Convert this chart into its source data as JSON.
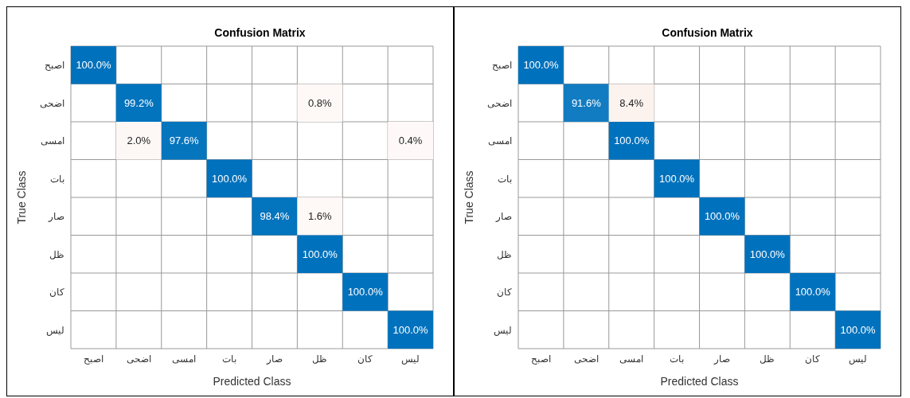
{
  "chart_data": [
    {
      "type": "heatmap",
      "title": "Confusion Matrix",
      "xlabel": "Predicted Class",
      "ylabel": "True Class",
      "categories": [
        "اصبح",
        "اضحى",
        "امسى",
        "بات",
        "صار",
        "ظل",
        "كان",
        "ليس"
      ],
      "y_categories": [
        "اصبح",
        "اضحى",
        "امسى",
        "بات",
        "صار",
        "ظل",
        "كان",
        "ليس"
      ],
      "cells": [
        [
          100.0,
          null,
          null,
          null,
          null,
          null,
          null,
          null
        ],
        [
          null,
          99.2,
          null,
          null,
          null,
          0.8,
          null,
          null
        ],
        [
          null,
          2.0,
          97.6,
          null,
          null,
          null,
          null,
          0.4
        ],
        [
          null,
          null,
          null,
          100.0,
          null,
          null,
          null,
          null
        ],
        [
          null,
          null,
          null,
          null,
          98.4,
          1.6,
          null,
          null
        ],
        [
          null,
          null,
          null,
          null,
          null,
          100.0,
          null,
          null
        ],
        [
          null,
          null,
          null,
          null,
          null,
          null,
          100.0,
          null
        ],
        [
          null,
          null,
          null,
          null,
          null,
          null,
          null,
          100.0
        ]
      ],
      "cell_labels": [
        [
          "100.0%",
          null,
          null,
          null,
          null,
          null,
          null,
          null
        ],
        [
          null,
          "99.2%",
          null,
          null,
          null,
          "0.8%",
          null,
          null
        ],
        [
          null,
          "2.0%",
          "97.6%",
          null,
          null,
          null,
          null,
          "0.4%"
        ],
        [
          null,
          null,
          null,
          "100.0%",
          null,
          null,
          null,
          null
        ],
        [
          null,
          null,
          null,
          null,
          "98.4%",
          "1.6%",
          null,
          null
        ],
        [
          null,
          null,
          null,
          null,
          null,
          "100.0%",
          null,
          null
        ],
        [
          null,
          null,
          null,
          null,
          null,
          null,
          "100.0%",
          null
        ],
        [
          null,
          null,
          null,
          null,
          null,
          null,
          null,
          "100.0%"
        ]
      ],
      "grid": true
    },
    {
      "type": "heatmap",
      "title": "Confusion Matrix",
      "xlabel": "Predicted Class",
      "ylabel": "True Class",
      "categories": [
        "اصبح",
        "اضحى",
        "امسى",
        "بات",
        "صار",
        "ظل",
        "كان",
        "ليس"
      ],
      "y_categories": [
        "اصبح",
        "اضحى",
        "امسى",
        "بات",
        "صار",
        "ظل",
        "كان",
        "ليس"
      ],
      "cells": [
        [
          100.0,
          null,
          null,
          null,
          null,
          null,
          null,
          null
        ],
        [
          null,
          91.6,
          8.4,
          null,
          null,
          null,
          null,
          null
        ],
        [
          null,
          null,
          100.0,
          null,
          null,
          null,
          null,
          null
        ],
        [
          null,
          null,
          null,
          100.0,
          null,
          null,
          null,
          null
        ],
        [
          null,
          null,
          null,
          null,
          100.0,
          null,
          null,
          null
        ],
        [
          null,
          null,
          null,
          null,
          null,
          100.0,
          null,
          null
        ],
        [
          null,
          null,
          null,
          null,
          null,
          null,
          100.0,
          null
        ],
        [
          null,
          null,
          null,
          null,
          null,
          null,
          null,
          100.0
        ]
      ],
      "cell_labels": [
        [
          "100.0%",
          null,
          null,
          null,
          null,
          null,
          null,
          null
        ],
        [
          null,
          "91.6%",
          "8.4%",
          null,
          null,
          null,
          null,
          null
        ],
        [
          null,
          null,
          "100.0%",
          null,
          null,
          null,
          null,
          null
        ],
        [
          null,
          null,
          null,
          "100.0%",
          null,
          null,
          null,
          null
        ],
        [
          null,
          null,
          null,
          null,
          "100.0%",
          null,
          null,
          null
        ],
        [
          null,
          null,
          null,
          null,
          null,
          "100.0%",
          null,
          null
        ],
        [
          null,
          null,
          null,
          null,
          null,
          null,
          "100.0%",
          null
        ],
        [
          null,
          null,
          null,
          null,
          null,
          null,
          null,
          "100.0%"
        ]
      ],
      "grid": true
    }
  ]
}
